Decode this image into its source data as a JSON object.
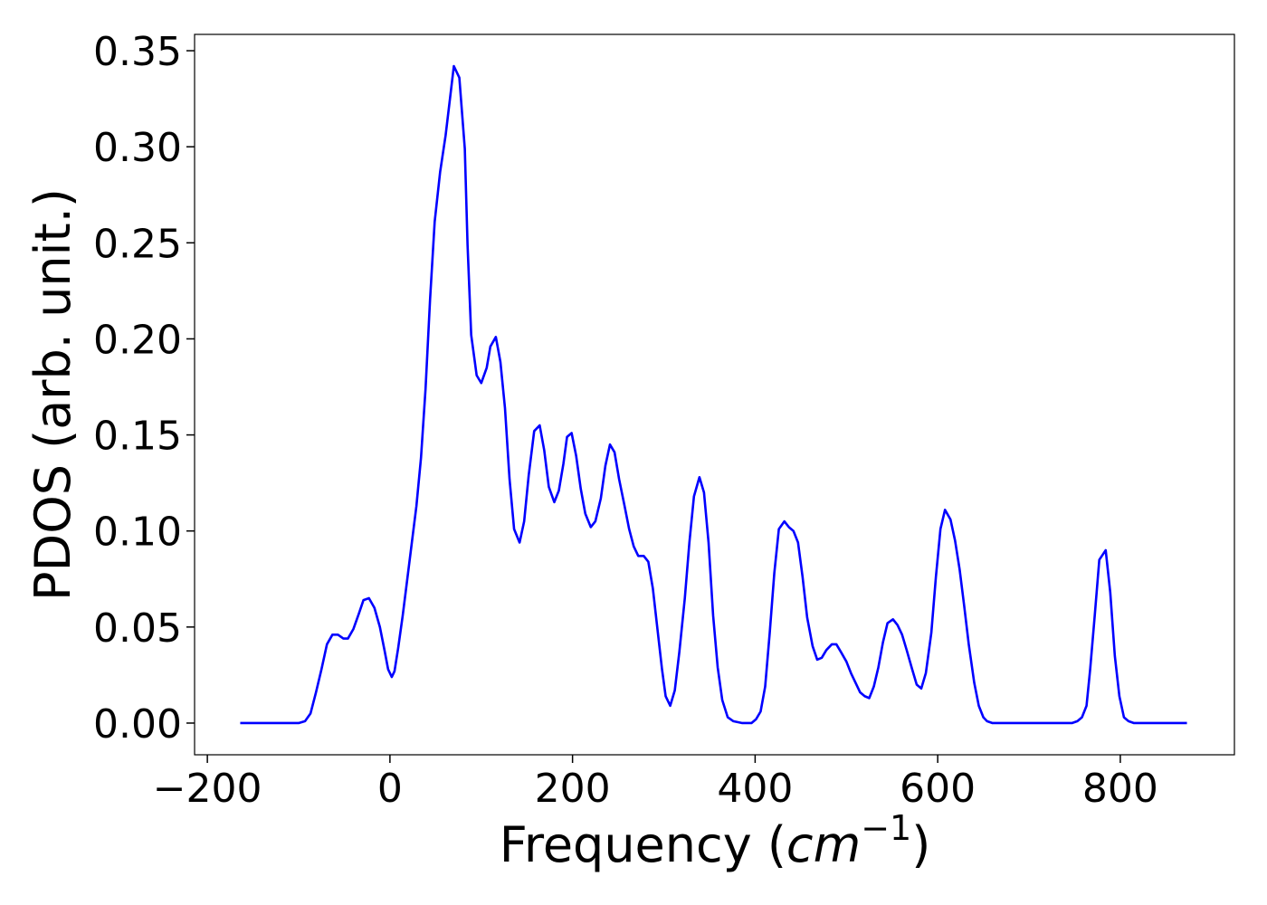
{
  "chart_data": {
    "type": "line",
    "xlabel": [
      "Frequency (",
      "cm",
      "−1",
      ")"
    ],
    "ylabel": "PDOS (arb. unit.)",
    "color": "#0000ff",
    "xlim": [
      -214,
      925
    ],
    "ylim": [
      -0.0165,
      0.3585
    ],
    "xticks": [
      {
        "value": -200,
        "label": "−200"
      },
      0,
      200,
      400,
      600,
      800
    ],
    "yticks": [
      {
        "value": 0,
        "label": "0.00"
      },
      0.05,
      {
        "value": 0.1,
        "label": "0.10"
      },
      0.15,
      {
        "value": 0.2,
        "label": "0.20"
      },
      0.25,
      {
        "value": 0.3,
        "label": "0.30"
      },
      0.35
    ],
    "x": [
      -164,
      -140,
      -120,
      -100,
      -93,
      -87,
      -81,
      -75,
      -69,
      -63,
      -57,
      -51,
      -46,
      -40,
      -34,
      -29,
      -23,
      -17,
      -11,
      -6,
      -2,
      2,
      5,
      9,
      14,
      19,
      24,
      29,
      34,
      39,
      44,
      49,
      55,
      61,
      66,
      70,
      76,
      82,
      85,
      89,
      95,
      100,
      106,
      110,
      116,
      121,
      126,
      131,
      136,
      142,
      147,
      152,
      158,
      164,
      169,
      174,
      180,
      185,
      190,
      194,
      199,
      204,
      209,
      214,
      220,
      225,
      231,
      236,
      241,
      246,
      251,
      257,
      262,
      267,
      272,
      278,
      283,
      288,
      293,
      298,
      302,
      307,
      312,
      317,
      323,
      328,
      333,
      339,
      344,
      349,
      354,
      359,
      364,
      370,
      376,
      386,
      396,
      401,
      406,
      411,
      416,
      421,
      426,
      432,
      437,
      442,
      447,
      452,
      457,
      463,
      468,
      473,
      478,
      484,
      489,
      494,
      500,
      505,
      510,
      515,
      520,
      525,
      530,
      535,
      540,
      545,
      551,
      556,
      561,
      566,
      572,
      577,
      582,
      587,
      593,
      598,
      603,
      608,
      614,
      619,
      624,
      629,
      634,
      640,
      645,
      650,
      654,
      660,
      700,
      747,
      753,
      758,
      763,
      767,
      772,
      777,
      784,
      789,
      794,
      799,
      804,
      809,
      815,
      850,
      873
    ],
    "values": [
      0,
      0,
      0,
      0,
      0.001,
      0.005,
      0.016,
      0.028,
      0.041,
      0.046,
      0.046,
      0.044,
      0.044,
      0.049,
      0.057,
      0.064,
      0.065,
      0.06,
      0.05,
      0.038,
      0.028,
      0.024,
      0.027,
      0.039,
      0.056,
      0.075,
      0.094,
      0.113,
      0.138,
      0.174,
      0.221,
      0.261,
      0.287,
      0.306,
      0.326,
      0.342,
      0.336,
      0.299,
      0.249,
      0.202,
      0.181,
      0.177,
      0.185,
      0.196,
      0.201,
      0.188,
      0.164,
      0.127,
      0.101,
      0.094,
      0.105,
      0.129,
      0.152,
      0.155,
      0.142,
      0.123,
      0.115,
      0.121,
      0.135,
      0.149,
      0.151,
      0.139,
      0.122,
      0.109,
      0.102,
      0.105,
      0.117,
      0.134,
      0.145,
      0.141,
      0.127,
      0.113,
      0.101,
      0.092,
      0.087,
      0.087,
      0.084,
      0.07,
      0.049,
      0.028,
      0.014,
      0.009,
      0.017,
      0.037,
      0.065,
      0.094,
      0.118,
      0.128,
      0.12,
      0.094,
      0.056,
      0.029,
      0.012,
      0.003,
      0.001,
      0,
      0,
      0.002,
      0.006,
      0.019,
      0.047,
      0.078,
      0.101,
      0.105,
      0.102,
      0.1,
      0.094,
      0.076,
      0.055,
      0.04,
      0.033,
      0.034,
      0.038,
      0.041,
      0.041,
      0.037,
      0.032,
      0.026,
      0.021,
      0.016,
      0.014,
      0.013,
      0.019,
      0.029,
      0.042,
      0.052,
      0.054,
      0.051,
      0.046,
      0.038,
      0.028,
      0.02,
      0.018,
      0.026,
      0.047,
      0.076,
      0.101,
      0.111,
      0.106,
      0.095,
      0.08,
      0.061,
      0.041,
      0.021,
      0.009,
      0.003,
      0.001,
      0,
      0,
      0,
      0.001,
      0.003,
      0.009,
      0.028,
      0.056,
      0.085,
      0.09,
      0.068,
      0.035,
      0.014,
      0.003,
      0.001,
      0,
      0,
      0
    ]
  }
}
